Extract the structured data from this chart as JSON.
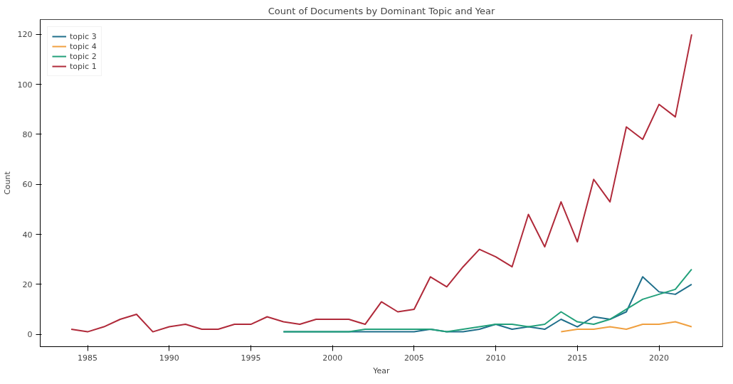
{
  "chart_data": {
    "type": "line",
    "title": "Count of Documents by Dominant Topic and Year",
    "xlabel": "Year",
    "ylabel": "Count",
    "xlim": [
      1982.1,
      2023.9
    ],
    "ylim": [
      -4.95,
      125.95
    ],
    "xticks": [
      1985,
      1990,
      1995,
      2000,
      2005,
      2010,
      2015,
      2020
    ],
    "yticks": [
      0,
      20,
      40,
      60,
      80,
      100,
      120
    ],
    "grid": false,
    "legend": "top left",
    "series": [
      {
        "name": "topic 3",
        "color": "#1f6f8b",
        "x": [
          1997,
          1998,
          1999,
          2000,
          2001,
          2002,
          2003,
          2004,
          2005,
          2006,
          2007,
          2008,
          2009,
          2010,
          2011,
          2012,
          2013,
          2014,
          2015,
          2016,
          2017,
          2018,
          2019,
          2020,
          2021,
          2022
        ],
        "values": [
          1,
          1,
          1,
          1,
          1,
          1,
          1,
          1,
          1,
          2,
          1,
          1,
          2,
          4,
          2,
          3,
          2,
          6,
          3,
          7,
          6,
          9,
          23,
          17,
          16,
          20
        ]
      },
      {
        "name": "topic 4",
        "color": "#f0a040",
        "x": [
          2014,
          2015,
          2016,
          2017,
          2018,
          2019,
          2020,
          2021,
          2022
        ],
        "values": [
          1,
          2,
          2,
          3,
          2,
          4,
          4,
          5,
          3
        ]
      },
      {
        "name": "topic 2",
        "color": "#22a07a",
        "x": [
          1997,
          1998,
          1999,
          2000,
          2001,
          2002,
          2003,
          2004,
          2005,
          2006,
          2007,
          2008,
          2009,
          2010,
          2011,
          2012,
          2013,
          2014,
          2015,
          2016,
          2017,
          2018,
          2019,
          2020,
          2021,
          2022
        ],
        "values": [
          1,
          1,
          1,
          1,
          1,
          2,
          2,
          2,
          2,
          2,
          1,
          2,
          3,
          4,
          4,
          3,
          4,
          9,
          5,
          4,
          6,
          10,
          14,
          16,
          18,
          26
        ]
      },
      {
        "name": "topic 1",
        "color": "#b02a3a",
        "x": [
          1984,
          1985,
          1986,
          1987,
          1988,
          1989,
          1990,
          1991,
          1992,
          1993,
          1994,
          1995,
          1996,
          1997,
          1998,
          1999,
          2000,
          2001,
          2002,
          2003,
          2004,
          2005,
          2006,
          2007,
          2008,
          2009,
          2010,
          2011,
          2012,
          2013,
          2014,
          2015,
          2016,
          2017,
          2018,
          2019,
          2020,
          2021,
          2022
        ],
        "values": [
          2,
          1,
          3,
          6,
          8,
          1,
          3,
          4,
          2,
          2,
          4,
          4,
          7,
          5,
          4,
          6,
          6,
          6,
          4,
          13,
          9,
          10,
          23,
          19,
          27,
          34,
          31,
          27,
          48,
          35,
          53,
          37,
          62,
          53,
          83,
          78,
          92,
          87,
          120
        ]
      }
    ]
  }
}
